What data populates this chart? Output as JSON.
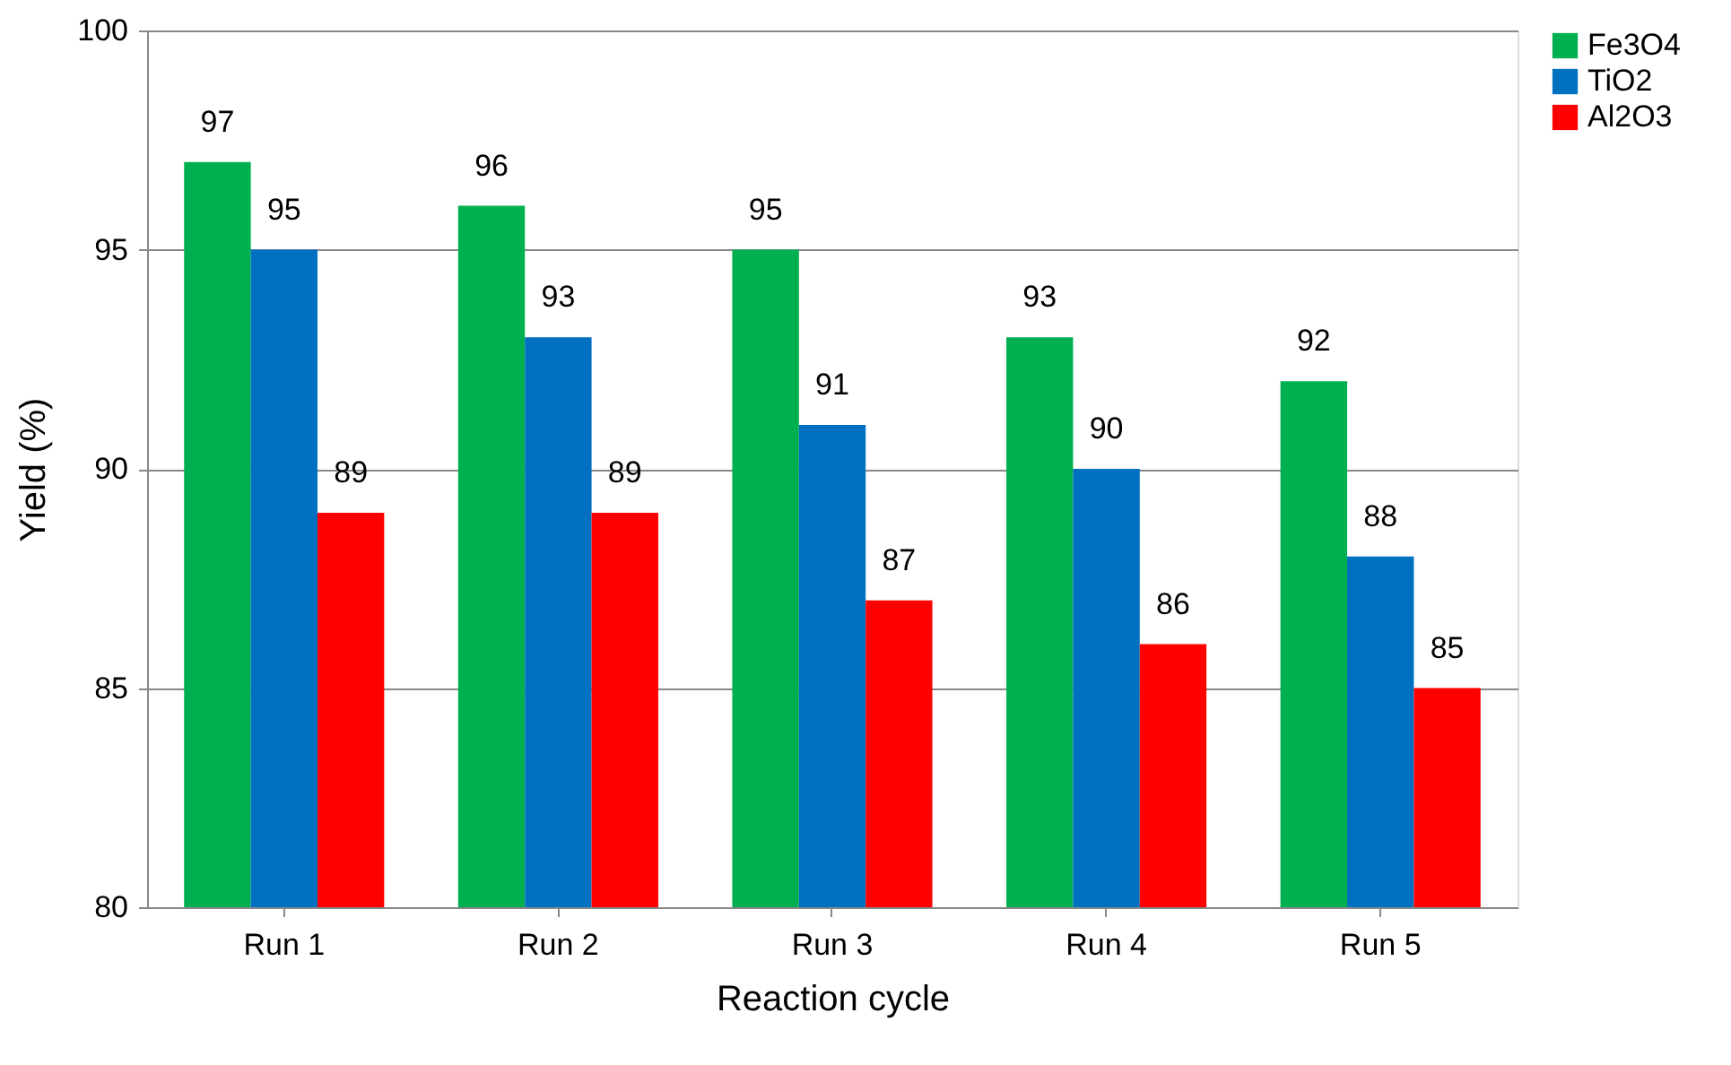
{
  "chart_data": {
    "type": "bar",
    "xlabel": "Reaction cycle",
    "ylabel": "Yield (%)",
    "categories": [
      "Run 1",
      "Run 2",
      "Run 3",
      "Run 4",
      "Run 5"
    ],
    "series": [
      {
        "name": "Fe3O4",
        "color": "#00b050",
        "values": [
          97,
          96,
          95,
          93,
          92
        ]
      },
      {
        "name": "TiO2",
        "color": "#0070c0",
        "values": [
          95,
          93,
          91,
          90,
          88
        ]
      },
      {
        "name": "Al2O3",
        "color": "#ff0000",
        "values": [
          89,
          89,
          87,
          86,
          85
        ]
      }
    ],
    "ylim": [
      80,
      100
    ],
    "yticks": [
      80,
      85,
      90,
      95,
      100
    ],
    "grid": "y",
    "legend": "right",
    "data_labels": true
  }
}
